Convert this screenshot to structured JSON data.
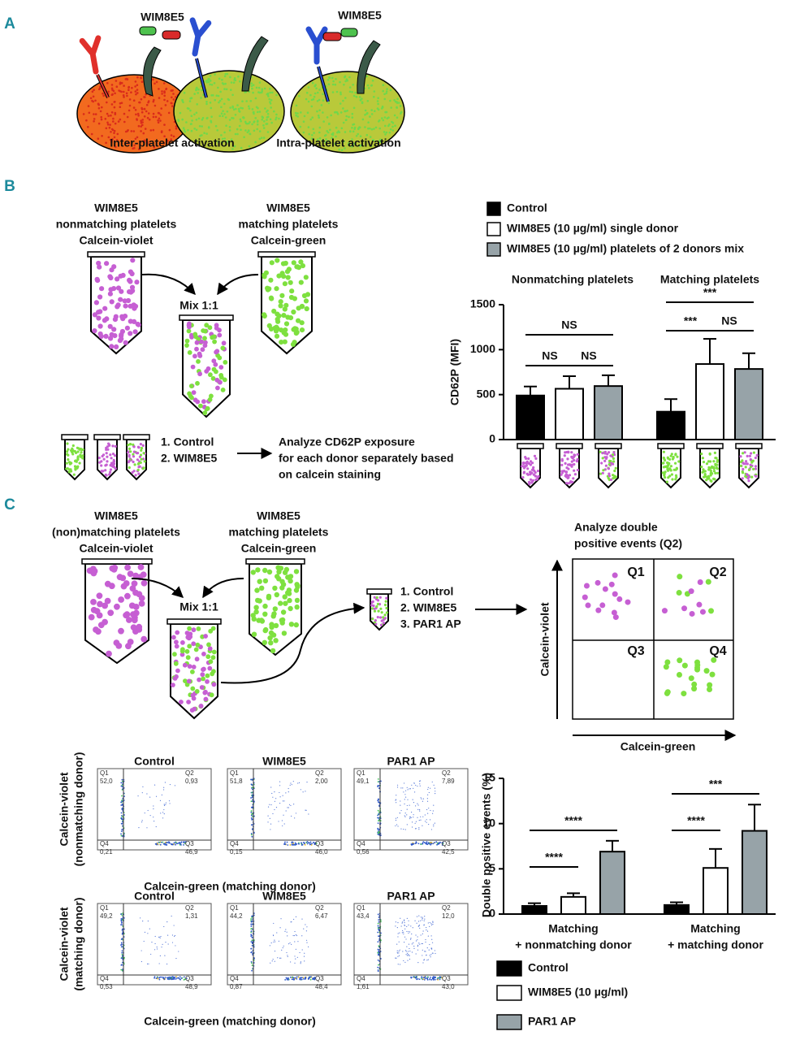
{
  "panel_a": {
    "label": "A",
    "antibody_left": "WIM8E5",
    "antibody_right": "WIM8E5",
    "caption_inter": "Inter-platelet activation",
    "caption_intra": "Intra-platelet activation"
  },
  "panel_b": {
    "label": "B",
    "tube_violet": [
      "WIM8E5",
      "nonmatching platelets",
      "Calcein-violet"
    ],
    "tube_green": [
      "WIM8E5",
      "matching platelets",
      "Calcein-green"
    ],
    "mix": "Mix 1:1",
    "steps": [
      "1. Control",
      "2. WIM8E5"
    ],
    "analysis": [
      "Analyze CD62P exposure",
      "for each donor separately based",
      "on calcein staining"
    ]
  },
  "panel_c": {
    "label": "C",
    "tube_violet": [
      "WIM8E5",
      "(non)matching platelets",
      "Calcein-violet"
    ],
    "tube_green": [
      "WIM8E5",
      "matching platelets",
      "Calcein-green"
    ],
    "mix": "Mix 1:1",
    "steps": [
      "1. Control",
      "2. WIM8E5",
      "3. PAR1 AP"
    ],
    "analysis": [
      "Analyze double",
      "positive events (Q2)"
    ],
    "quadrants": [
      "Q1",
      "Q2",
      "Q3",
      "Q4"
    ],
    "y_axis": "Calcein-violet",
    "x_axis": "Calcein-green",
    "flow": {
      "columns": [
        "Control",
        "WIM8E5",
        "PAR1 AP"
      ],
      "rows": [
        {
          "label": [
            "Calcein-violet",
            "(nonmatching donor)"
          ],
          "x_label": "Calcein-green (matching donor)",
          "plots": [
            [
              {
                "name": "Q1",
                "value": "52,0"
              },
              {
                "name": "Q2",
                "value": "0,93"
              },
              {
                "name": "Q3",
                "value": "46,9"
              },
              {
                "name": "Q4",
                "value": "0,21"
              }
            ],
            [
              {
                "name": "Q1",
                "value": "51,8"
              },
              {
                "name": "Q2",
                "value": "2,00"
              },
              {
                "name": "Q3",
                "value": "46,0"
              },
              {
                "name": "Q4",
                "value": "0,15"
              }
            ],
            [
              {
                "name": "Q1",
                "value": "49,1"
              },
              {
                "name": "Q2",
                "value": "7,89"
              },
              {
                "name": "Q3",
                "value": "42,5"
              },
              {
                "name": "Q4",
                "value": "0,56"
              }
            ]
          ]
        },
        {
          "label": [
            "Calcein-violet",
            "(matching donor)"
          ],
          "x_label": "Calcein-green (matching donor)",
          "plots": [
            [
              {
                "name": "Q1",
                "value": "49,2"
              },
              {
                "name": "Q2",
                "value": "1,31"
              },
              {
                "name": "Q3",
                "value": "48,9"
              },
              {
                "name": "Q4",
                "value": "0,53"
              }
            ],
            [
              {
                "name": "Q1",
                "value": "44,2"
              },
              {
                "name": "Q2",
                "value": "6,47"
              },
              {
                "name": "Q3",
                "value": "48,4"
              },
              {
                "name": "Q4",
                "value": "0,87"
              }
            ],
            [
              {
                "name": "Q1",
                "value": "43,4"
              },
              {
                "name": "Q2",
                "value": "12,0"
              },
              {
                "name": "Q3",
                "value": "43,0"
              },
              {
                "name": "Q4",
                "value": "1,61"
              }
            ]
          ]
        }
      ]
    }
  },
  "chart_data": [
    {
      "type": "bar",
      "y_label": "CD62P (MFI)",
      "categories": [
        "Nonmatching platelets",
        "Matching platelets"
      ],
      "series": [
        {
          "name": "Control",
          "color": "#000000",
          "values": [
            490,
            310
          ],
          "errors": [
            100,
            140
          ]
        },
        {
          "name": "WIM8E5 (10 µg/ml) single donor",
          "color": "#ffffff",
          "values": [
            565,
            840
          ],
          "errors": [
            140,
            280
          ]
        },
        {
          "name": "WIM8E5 (10 µg/ml) platelets of 2 donors mix",
          "color": "#97a3a8",
          "values": [
            595,
            785
          ],
          "errors": [
            120,
            175
          ]
        }
      ],
      "ylim": [
        0,
        1500
      ],
      "yticks": [
        0,
        500,
        1000,
        1500
      ],
      "annotations": [
        "NS",
        "NS",
        "NS",
        "***",
        "***",
        "NS"
      ]
    },
    {
      "type": "bar",
      "y_label": "Double positive events (%)",
      "categories": [
        [
          "Matching",
          "+ nonmatching donor"
        ],
        [
          "Matching",
          "+ matching donor"
        ]
      ],
      "series": [
        {
          "name": "Control",
          "color": "#000000",
          "values": [
            0.9,
            1.0
          ],
          "errors": [
            0.3,
            0.3
          ]
        },
        {
          "name": "WIM8E5 (10 µg/ml)",
          "color": "#ffffff",
          "values": [
            1.9,
            5.1
          ],
          "errors": [
            0.4,
            2.1
          ]
        },
        {
          "name": "PAR1 AP",
          "color": "#97a3a8",
          "values": [
            6.9,
            9.2
          ],
          "errors": [
            1.2,
            2.9
          ]
        }
      ],
      "ylim": [
        0,
        15
      ],
      "yticks": [
        0,
        5,
        10,
        15
      ],
      "annotations": [
        "****",
        "****",
        "***",
        "****"
      ]
    }
  ]
}
